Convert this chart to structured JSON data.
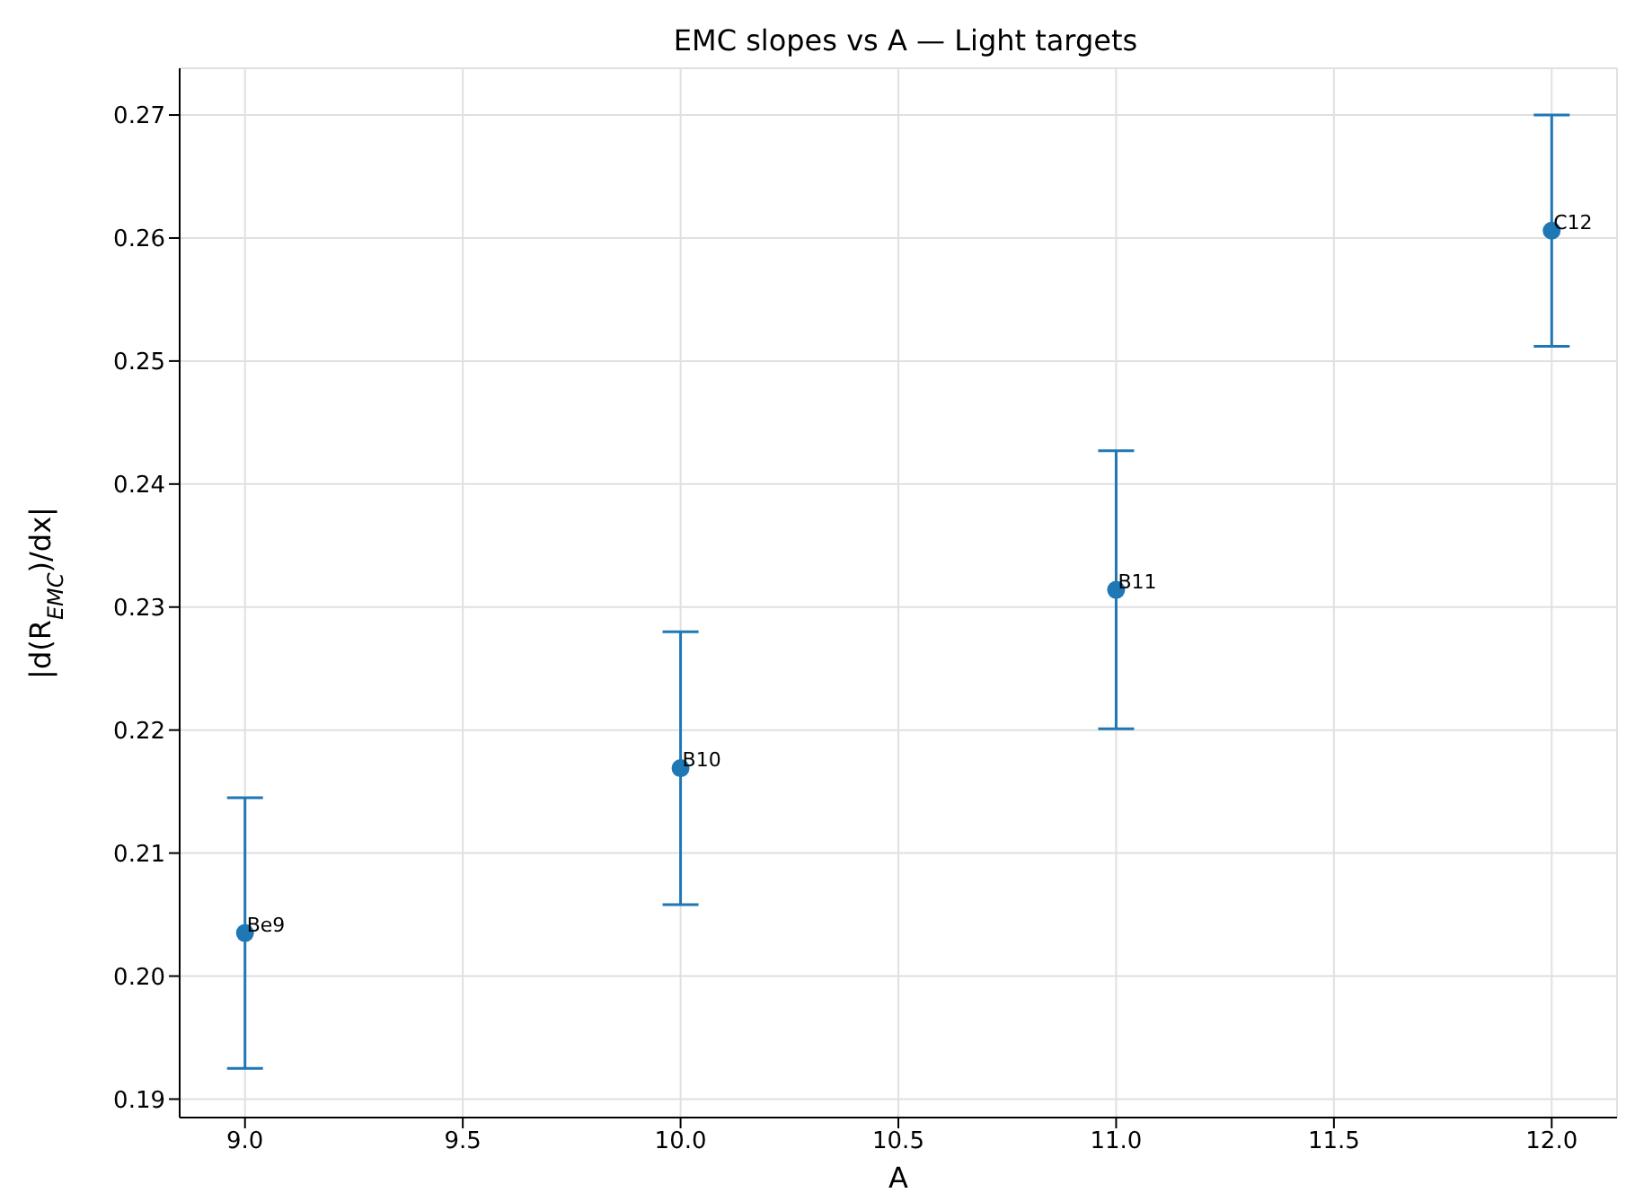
{
  "chart_data": {
    "type": "scatter",
    "title": "EMC slopes vs A — Light targets",
    "xlabel": "A",
    "ylabel": "|d(R$_{EMC}$)/dx|",
    "x": [
      9,
      10,
      11,
      12
    ],
    "series": [
      {
        "color": "#1f77b4",
        "values": [
          0.2035,
          0.2169,
          0.2314,
          0.2606
        ],
        "errors": [
          0.011,
          0.0111,
          0.0113,
          0.0094
        ]
      }
    ],
    "annotations": [
      {
        "text": "Be9",
        "x": 9,
        "y": 0.2035
      },
      {
        "text": "B10",
        "x": 10,
        "y": 0.2169
      },
      {
        "text": "B11",
        "x": 11,
        "y": 0.2314
      },
      {
        "text": "C12",
        "x": 12,
        "y": 0.2606
      }
    ],
    "xlim": [
      8.85,
      12.15
    ],
    "xticks": [
      {
        "value": 9,
        "label": "9.0"
      },
      {
        "value": 9.5,
        "label": "9.5"
      },
      {
        "value": 10,
        "label": "10.0"
      },
      {
        "value": 10.5,
        "label": "10.5"
      },
      {
        "value": 11,
        "label": "11.0"
      },
      {
        "value": 11.5,
        "label": "11.5"
      },
      {
        "value": 12,
        "label": "12.0"
      }
    ],
    "ylim": [
      0.1885,
      0.2738
    ],
    "yticks": [
      0.19,
      {
        "value": 0.2,
        "label": "0.20"
      },
      0.21,
      0.22,
      0.23,
      0.24,
      0.25,
      0.26,
      0.27
    ],
    "grid": true,
    "marker": "circle"
  }
}
